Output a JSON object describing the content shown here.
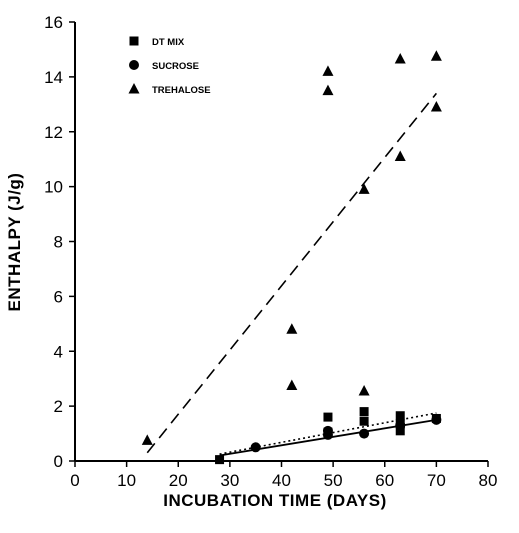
{
  "chart_data": {
    "type": "scatter",
    "title": "",
    "xlabel": "INCUBATION TIME  (DAYS)",
    "ylabel": "ENTHALPY  (J/g)",
    "xlim": [
      0,
      80
    ],
    "ylim": [
      0,
      16
    ],
    "xticks": [
      "0",
      "10",
      "20",
      "30",
      "40",
      "50",
      "60",
      "70",
      "80"
    ],
    "yticks": [
      "0",
      "2",
      "4",
      "6",
      "8",
      "10",
      "12",
      "14",
      "16"
    ],
    "grid": false,
    "legend_position": "top-left",
    "series": [
      {
        "name": "DT MIX",
        "marker": "square",
        "points": [
          [
            28,
            0.05
          ],
          [
            49,
            1.6
          ],
          [
            49,
            1.05
          ],
          [
            56,
            1.8
          ],
          [
            56,
            1.45
          ],
          [
            63,
            1.65
          ],
          [
            63,
            1.35
          ],
          [
            63,
            1.1
          ],
          [
            70,
            1.55
          ]
        ],
        "fit": {
          "style": "dotted",
          "x": [
            28,
            70
          ],
          "y": [
            0.25,
            1.75
          ]
        }
      },
      {
        "name": "SUCROSE",
        "marker": "circle",
        "points": [
          [
            35,
            0.5
          ],
          [
            49,
            1.1
          ],
          [
            49,
            0.95
          ],
          [
            56,
            1.0
          ],
          [
            63,
            1.3
          ],
          [
            70,
            1.5
          ]
        ],
        "fit": {
          "style": "solid",
          "x": [
            28,
            70
          ],
          "y": [
            0.2,
            1.5
          ]
        }
      },
      {
        "name": "TREHALOSE",
        "marker": "triangle",
        "points": [
          [
            14,
            0.75
          ],
          [
            42,
            4.8
          ],
          [
            42,
            2.75
          ],
          [
            49,
            14.2
          ],
          [
            49,
            13.5
          ],
          [
            56,
            9.9
          ],
          [
            56,
            2.55
          ],
          [
            63,
            14.65
          ],
          [
            63,
            11.1
          ],
          [
            70,
            14.75
          ],
          [
            70,
            12.9
          ]
        ],
        "fit": {
          "style": "dashed",
          "x": [
            14,
            70
          ],
          "y": [
            0.3,
            13.4
          ]
        }
      }
    ]
  }
}
